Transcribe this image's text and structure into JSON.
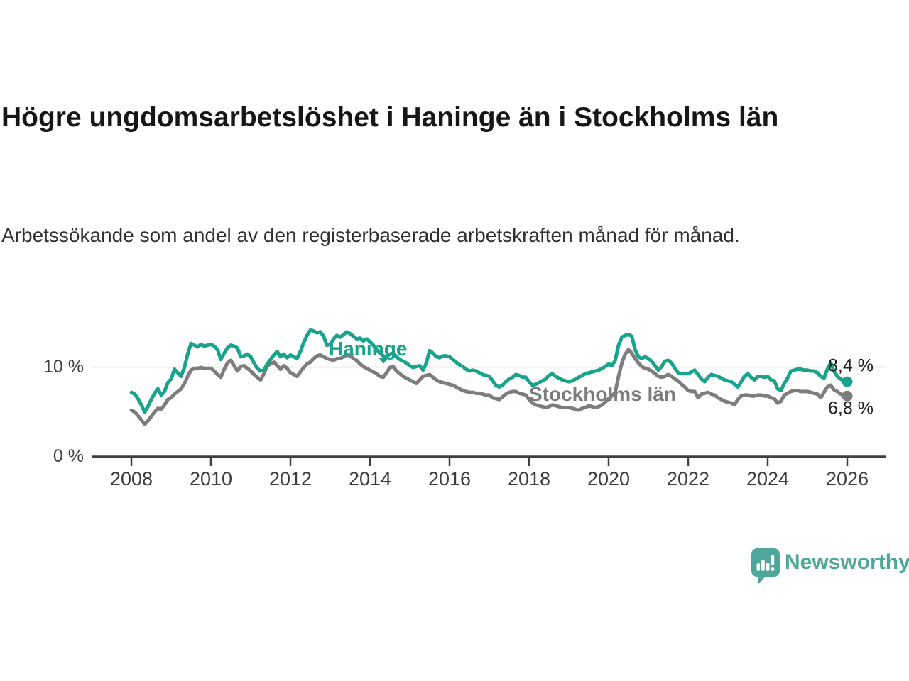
{
  "title": "Högre ungdomsarbetslöshet i Haninge än i Stockholms län",
  "subtitle": "Arbetssökande som andel av den registerbaserade arbetskraften månad för månad.",
  "colors": {
    "haninge_line": "#19a38c",
    "stockholm_line": "#7d7d7d",
    "grid": "#d7d7d7",
    "axis": "#3f3f3f",
    "text": "#3d3d3d",
    "logo_teal": "#4fa79b"
  },
  "logo": {
    "text": "Newsworthy",
    "icon": "speech-bubble-bar-chart-icon"
  },
  "chart_data": {
    "type": "line",
    "title": "Högre ungdomsarbetslöshet i Haninge än i Stockholms län",
    "subtitle": "Arbetssökande som andel av den registerbaserade arbetskraften månad för månad.",
    "unit": "%",
    "frequency": "monthly",
    "x_start": "2008-01",
    "x_end": "2026-01",
    "xlim": [
      2007.0,
      2027.0
    ],
    "ylim": [
      0,
      15.6
    ],
    "grid": "single horizontal gridline at 10 %",
    "y_ticks": [
      0,
      10
    ],
    "y_tick_labels": [
      "0 %",
      "10 %"
    ],
    "x_tick_years": [
      2008,
      2010,
      2012,
      2014,
      2016,
      2018,
      2020,
      2022,
      2024,
      2026
    ],
    "x_tick_labels": [
      "2008",
      "2010",
      "2012",
      "2014",
      "2016",
      "2018",
      "2020",
      "2022",
      "2024",
      "2026"
    ],
    "legend_position": "labels drawn on chart next to lines",
    "series": [
      {
        "name": "Haninge",
        "color": "#19a38c",
        "end_label": "8,4 %",
        "end_value": 8.4,
        "values": [
          7.2,
          7.0,
          6.5,
          5.8,
          5.0,
          5.6,
          6.4,
          7.1,
          7.6,
          6.9,
          7.3,
          8.3,
          8.7,
          9.8,
          9.4,
          9.0,
          10.0,
          11.5,
          12.7,
          12.5,
          12.3,
          12.6,
          12.4,
          12.5,
          12.6,
          12.4,
          12.0,
          10.9,
          11.6,
          12.2,
          12.5,
          12.4,
          12.2,
          11.2,
          11.3,
          11.5,
          11.2,
          10.5,
          9.9,
          9.6,
          9.7,
          10.4,
          10.9,
          11.4,
          11.8,
          11.2,
          11.5,
          11.1,
          11.4,
          11.2,
          11.0,
          11.8,
          12.8,
          13.6,
          14.2,
          14.1,
          13.9,
          14.0,
          13.5,
          12.5,
          12.6,
          13.2,
          13.6,
          13.4,
          13.7,
          14.0,
          13.8,
          13.5,
          13.2,
          13.3,
          13.0,
          13.2,
          12.9,
          12.5,
          12.0,
          11.6,
          11.3,
          11.2,
          11.5,
          11.6,
          11.2,
          10.9,
          10.7,
          10.5,
          10.2,
          10.0,
          10.1,
          10.2,
          9.7,
          10.5,
          11.9,
          11.6,
          11.2,
          11.1,
          11.3,
          11.3,
          11.2,
          10.9,
          10.6,
          10.3,
          10.1,
          9.8,
          9.6,
          9.7,
          9.6,
          9.4,
          9.2,
          9.1,
          9.0,
          8.5,
          8.0,
          7.8,
          8.0,
          8.4,
          8.7,
          8.9,
          9.2,
          9.1,
          8.9,
          8.9,
          8.4,
          8.0,
          8.1,
          8.3,
          8.5,
          8.7,
          9.1,
          9.3,
          9.0,
          8.8,
          8.6,
          8.5,
          8.4,
          8.5,
          8.7,
          8.9,
          9.1,
          9.3,
          9.4,
          9.5,
          9.6,
          9.7,
          9.9,
          10.1,
          10.4,
          10.2,
          10.8,
          12.5,
          13.4,
          13.6,
          13.7,
          13.5,
          12.0,
          11.2,
          11.0,
          11.2,
          11.0,
          10.7,
          10.2,
          9.7,
          10.1,
          10.7,
          10.8,
          10.5,
          9.9,
          9.4,
          9.3,
          9.3,
          9.3,
          9.5,
          9.7,
          9.2,
          8.7,
          8.4,
          8.9,
          9.2,
          9.1,
          9.0,
          8.8,
          8.6,
          8.5,
          8.4,
          8.1,
          7.8,
          8.4,
          9.0,
          9.3,
          8.9,
          8.6,
          9.0,
          9.0,
          8.9,
          9.0,
          8.6,
          8.5,
          7.6,
          7.4,
          8.2,
          8.8,
          9.6,
          9.7,
          9.8,
          9.8,
          9.7,
          9.7,
          9.6,
          9.6,
          9.4,
          9.0,
          8.8,
          9.8,
          10.5,
          9.6,
          9.0,
          8.7,
          8.5,
          8.4
        ]
      },
      {
        "name": "Stockholms län",
        "color": "#7d7d7d",
        "end_label": "6,8 %",
        "end_value": 6.8,
        "values": [
          5.2,
          5.0,
          4.6,
          4.1,
          3.6,
          4.0,
          4.5,
          5.0,
          5.4,
          5.3,
          5.8,
          6.4,
          6.6,
          7.0,
          7.3,
          7.6,
          8.2,
          9.0,
          9.7,
          9.9,
          9.9,
          10.0,
          9.9,
          9.9,
          9.9,
          9.6,
          9.2,
          8.9,
          9.8,
          10.5,
          10.8,
          10.2,
          9.6,
          10.1,
          10.2,
          9.9,
          9.6,
          9.2,
          8.9,
          8.6,
          9.3,
          10.2,
          10.4,
          10.6,
          10.2,
          9.8,
          10.2,
          9.9,
          9.4,
          9.2,
          9.0,
          9.5,
          10.0,
          10.4,
          10.6,
          11.0,
          11.3,
          11.4,
          11.2,
          11.0,
          10.9,
          10.8,
          11.0,
          11.0,
          11.2,
          11.4,
          11.3,
          11.0,
          10.8,
          10.4,
          10.1,
          9.9,
          9.7,
          9.5,
          9.3,
          9.0,
          8.9,
          9.4,
          10.0,
          10.1,
          9.6,
          9.3,
          9.0,
          8.8,
          8.6,
          8.4,
          8.2,
          8.6,
          9.0,
          9.1,
          9.2,
          8.9,
          8.6,
          8.4,
          8.3,
          8.2,
          8.1,
          8.0,
          7.8,
          7.6,
          7.4,
          7.3,
          7.2,
          7.2,
          7.1,
          7.1,
          7.0,
          6.9,
          6.9,
          6.6,
          6.5,
          6.4,
          6.7,
          7.0,
          7.2,
          7.3,
          7.3,
          7.1,
          7.0,
          6.9,
          6.4,
          6.0,
          5.8,
          5.7,
          5.6,
          5.5,
          5.6,
          5.8,
          5.7,
          5.6,
          5.5,
          5.5,
          5.5,
          5.4,
          5.3,
          5.2,
          5.4,
          5.5,
          5.7,
          5.6,
          5.5,
          5.6,
          5.8,
          6.1,
          6.5,
          6.8,
          7.2,
          9.0,
          10.5,
          11.5,
          12.0,
          11.6,
          11.0,
          10.5,
          10.1,
          9.9,
          9.8,
          9.6,
          9.3,
          9.0,
          8.9,
          9.0,
          9.2,
          9.0,
          8.7,
          8.5,
          8.1,
          7.8,
          7.4,
          7.3,
          7.3,
          6.6,
          7.0,
          7.1,
          7.2,
          7.0,
          6.9,
          6.6,
          6.4,
          6.2,
          6.1,
          6.0,
          5.8,
          6.4,
          6.8,
          6.9,
          6.9,
          6.8,
          6.8,
          6.9,
          6.9,
          6.8,
          6.8,
          6.6,
          6.5,
          6.0,
          6.2,
          6.9,
          7.1,
          7.3,
          7.4,
          7.4,
          7.3,
          7.3,
          7.3,
          7.2,
          7.1,
          7.0,
          6.6,
          7.2,
          7.8,
          8.0,
          7.5,
          7.3,
          7.0,
          6.9,
          6.8
        ]
      }
    ]
  }
}
